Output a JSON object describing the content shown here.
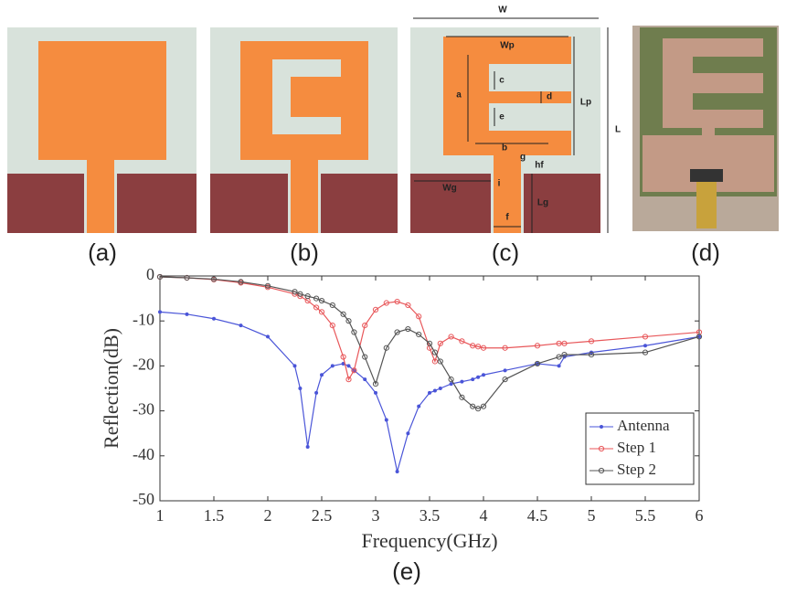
{
  "panel_labels": [
    "(a)",
    "(b)",
    "(c)",
    "(d)"
  ],
  "dimension_labels": {
    "W": "W",
    "Wp": "Wp",
    "L": "L",
    "Lp": "Lp",
    "a": "a",
    "b": "b",
    "c": "c",
    "d": "d",
    "e": "e",
    "f": "f",
    "g": "g",
    "hf": "hf",
    "i": "i",
    "Wg": "Wg",
    "Lg": "Lg"
  },
  "chart_data": {
    "type": "line",
    "caption": "(e)",
    "x_label": "Frequency(GHz)",
    "y_label": "Reflection(dB)",
    "x": [
      1,
      1.25,
      1.5,
      1.75,
      2,
      2.25,
      2.3,
      2.37,
      2.45,
      2.5,
      2.6,
      2.7,
      2.75,
      2.8,
      2.9,
      3,
      3.1,
      3.2,
      3.3,
      3.4,
      3.5,
      3.55,
      3.6,
      3.7,
      3.8,
      3.9,
      3.95,
      4,
      4.2,
      4.5,
      4.7,
      4.75,
      5,
      5.5,
      6
    ],
    "series": [
      {
        "name": "Antenna",
        "color": "#4a55d8",
        "marker": "dot",
        "values": [
          -8,
          -8.5,
          -9.5,
          -11,
          -13.5,
          -20,
          -25,
          -38,
          -26,
          -22,
          -20,
          -19.5,
          -20,
          -21,
          -23,
          -26,
          -32,
          -43.5,
          -35,
          -29,
          -26,
          -25.5,
          -25,
          -24,
          -23.5,
          -23,
          -22.5,
          -22,
          -21,
          -19.5,
          -20,
          -18,
          -17,
          -15.5,
          -13.5
        ]
      },
      {
        "name": "Step 1",
        "color": "#e8575a",
        "marker": "circle",
        "values": [
          -0.2,
          -0.4,
          -0.8,
          -1.5,
          -2.5,
          -4,
          -4.5,
          -5.5,
          -7,
          -8,
          -11,
          -18,
          -23,
          -21,
          -11,
          -7.5,
          -6,
          -5.7,
          -6.5,
          -9,
          -16,
          -19,
          -15,
          -13.5,
          -14.5,
          -15.5,
          -15.7,
          -16,
          -16,
          -15.5,
          -15,
          -15,
          -14.5,
          -13.5,
          -12.5
        ]
      },
      {
        "name": "Step 2",
        "color": "#555555",
        "marker": "circle",
        "values": [
          -0.2,
          -0.4,
          -0.7,
          -1.3,
          -2.2,
          -3.5,
          -4,
          -4.5,
          -5,
          -5.5,
          -6.5,
          -8.5,
          -10,
          -12.5,
          -18,
          -24,
          -16,
          -12.5,
          -11.8,
          -13,
          -15,
          -17,
          -19,
          -23,
          -27,
          -29,
          -29.5,
          -29,
          -23,
          -19.5,
          -18,
          -17.5,
          -17.5,
          -17,
          -13.5
        ]
      }
    ],
    "xlim": [
      1,
      6
    ],
    "ylim": [
      -50,
      0
    ],
    "xticks": [
      1,
      1.5,
      2,
      2.5,
      3,
      3.5,
      4,
      4.5,
      5,
      5.5,
      6
    ],
    "yticks": [
      0,
      -10,
      -20,
      -30,
      -40,
      -50
    ],
    "legend": "lower right",
    "grid": false
  }
}
